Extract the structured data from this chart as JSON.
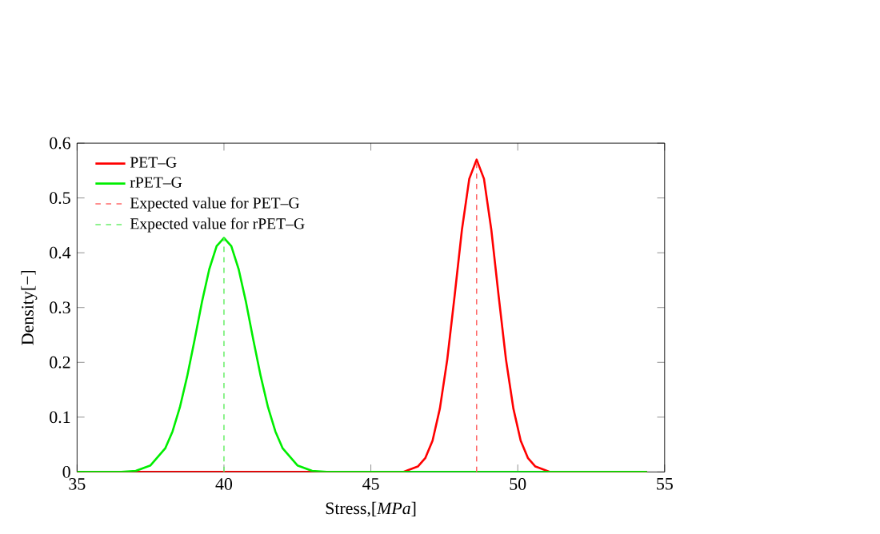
{
  "chart_data": {
    "type": "line",
    "xlabel": "Stress,[*MPa*]",
    "ylabel": "Density[−]",
    "xlim": [
      35,
      55
    ],
    "xticks": [
      35,
      40,
      45,
      50,
      55
    ],
    "ylim": [
      0,
      0.6
    ],
    "yticks": [
      0,
      0.1,
      0.2,
      0.3,
      0.4,
      0.5,
      0.6
    ],
    "legend": "top left",
    "grid": false,
    "line_style": "solid",
    "marker": "none",
    "series": [
      {
        "name": "PET–G",
        "color": "#ff0000",
        "x": [
          35,
          44,
          45.6,
          46.1,
          46.6,
          46.85,
          47.1,
          47.35,
          47.6,
          47.85,
          48.1,
          48.35,
          48.6,
          48.85,
          49.1,
          49.35,
          49.6,
          49.85,
          50.1,
          50.35,
          50.6,
          51.1,
          51.6,
          54.4
        ],
        "values": [
          0,
          0,
          0,
          0,
          0.01,
          0.025,
          0.057,
          0.116,
          0.205,
          0.321,
          0.442,
          0.535,
          0.57,
          0.535,
          0.442,
          0.321,
          0.205,
          0.116,
          0.057,
          0.025,
          0.01,
          0,
          0,
          0
        ]
      },
      {
        "name": "rPET–G",
        "color": "#00ee00",
        "x": [
          35,
          36.5,
          37,
          37.5,
          38,
          38.25,
          38.5,
          38.75,
          39,
          39.25,
          39.5,
          39.75,
          40,
          40.25,
          40.5,
          40.75,
          41,
          41.25,
          41.5,
          41.75,
          42,
          42.5,
          43,
          43.5,
          54.4
        ],
        "values": [
          0,
          0,
          0.002,
          0.012,
          0.043,
          0.074,
          0.118,
          0.175,
          0.241,
          0.31,
          0.37,
          0.412,
          0.427,
          0.412,
          0.37,
          0.31,
          0.241,
          0.175,
          0.118,
          0.074,
          0.043,
          0.012,
          0.002,
          0,
          0
        ]
      },
      {
        "name": "Expected value for PET–G",
        "color": "#ff6a6a",
        "line_style": "dashed",
        "x": [
          48.6,
          48.6
        ],
        "values": [
          0,
          0.57
        ]
      },
      {
        "name": "Expected value for rPET–G",
        "color": "#6aee6a",
        "line_style": "dashed",
        "x": [
          40,
          40
        ],
        "values": [
          0,
          0.427
        ]
      }
    ]
  }
}
